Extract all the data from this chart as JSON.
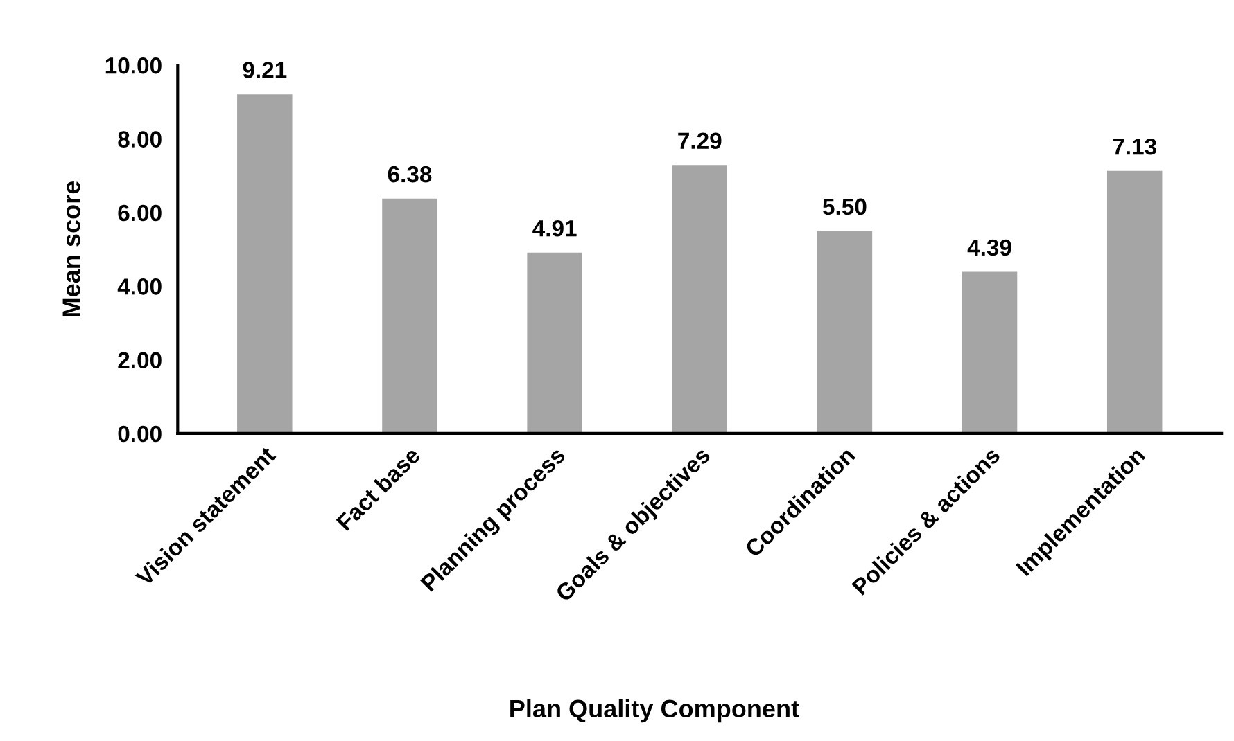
{
  "chart_data": {
    "type": "bar",
    "xlabel": "Plan Quality Component",
    "ylabel": "Mean score",
    "categories": [
      "Vision statement",
      "Fact base",
      "Planning process",
      "Goals & objectives",
      "Coordination",
      "Policies & actions",
      "Implementation"
    ],
    "values": [
      9.21,
      6.38,
      4.91,
      7.29,
      5.5,
      4.39,
      7.13
    ],
    "value_labels": [
      "9.21",
      "6.38",
      "4.91",
      "7.29",
      "5.50",
      "4.39",
      "7.13"
    ],
    "color": "#a5a5a5",
    "ylim": [
      0,
      10
    ],
    "yticks": [
      {
        "value": 0,
        "label": "0.00"
      },
      {
        "value": 2,
        "label": "2.00"
      },
      {
        "value": 4,
        "label": "4.00"
      },
      {
        "value": 6,
        "label": "6.00"
      },
      {
        "value": 8,
        "label": "8.00"
      },
      {
        "value": 10,
        "label": "10.00"
      }
    ],
    "grid": false,
    "legend": false
  }
}
